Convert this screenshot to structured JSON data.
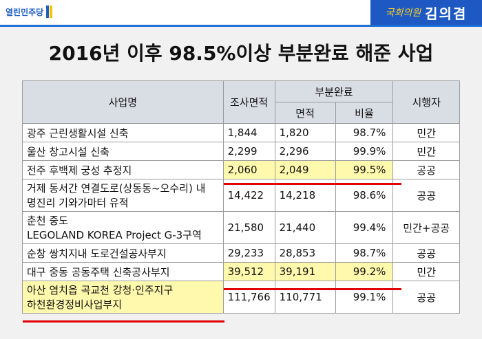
{
  "header": {
    "party_logo": "열린민주당",
    "member_role": "국회의원",
    "member_name": "김의겸"
  },
  "title": "2016년 이후 98.5%이상 부분완료 해준 사업",
  "table": {
    "headers": {
      "project": "사업명",
      "survey_area": "조사면적",
      "partial_group": "부분완료",
      "area": "면적",
      "ratio": "비율",
      "executor": "시행자"
    },
    "rows": [
      {
        "name": "광주 근린생활시설 신축",
        "survey": "1,844",
        "area": "1,820",
        "ratio": "98.7%",
        "executor": "민간"
      },
      {
        "name": "울산 창고시설 신축",
        "survey": "2,299",
        "area": "2,296",
        "ratio": "99.9%",
        "executor": "민간"
      },
      {
        "name": "전주 후백제 궁성 추정지",
        "survey": "2,060",
        "area": "2,049",
        "ratio": "99.5%",
        "executor": "공공"
      },
      {
        "name_line1": "거제 동서간 연결도로(상동동~오수리) 내",
        "name_line2": "명진리 기와가마터 유적",
        "survey": "14,422",
        "area": "14,218",
        "ratio": "98.6%",
        "executor": "공공"
      },
      {
        "name_line1": "춘천 중도",
        "name_line2": "LEGOLAND KOREA Project G-3구역",
        "survey": "21,580",
        "area": "21,440",
        "ratio": "99.4%",
        "executor": "민간+공공"
      },
      {
        "name": "순창 쌍치지내 도로건설공사부지",
        "survey": "29,233",
        "area": "28,853",
        "ratio": "98.7%",
        "executor": "공공"
      },
      {
        "name": "대구 중동 공동주택 신축공사부지",
        "survey": "39,512",
        "area": "39,191",
        "ratio": "99.2%",
        "executor": "민간"
      },
      {
        "name_line1": "아산 염치읍 곡교천 강청·인주지구",
        "name_line2": "하천환경정비사업부지",
        "survey": "111,766",
        "area": "110,771",
        "ratio": "99.1%",
        "executor": "공공"
      }
    ]
  }
}
